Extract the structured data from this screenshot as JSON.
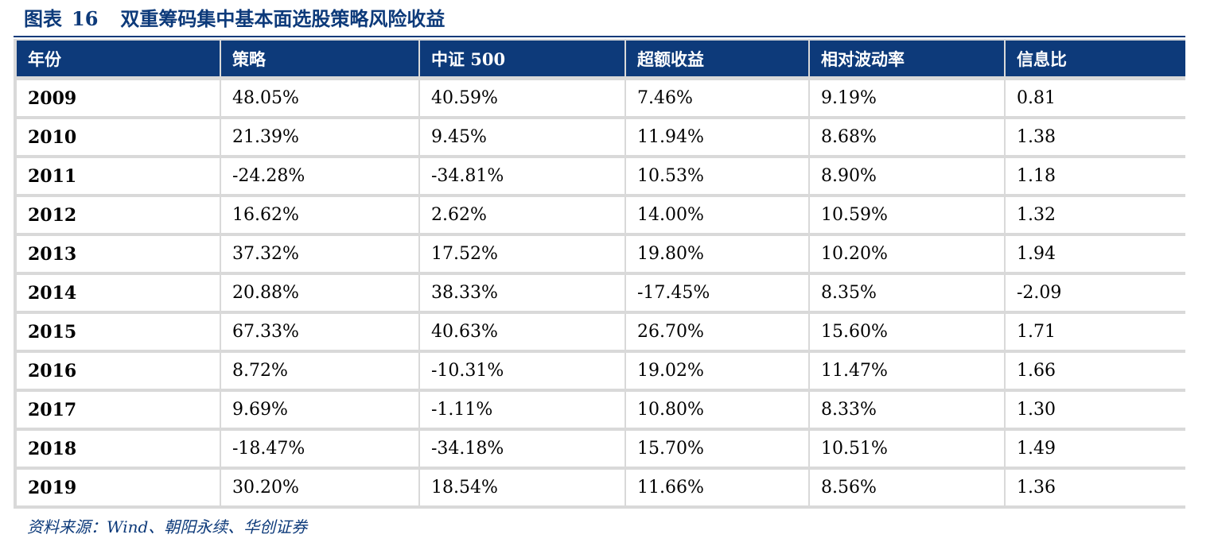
{
  "figure": {
    "label": "图表",
    "number": "16",
    "title": "双重筹码集中基本面选股策略风险收益"
  },
  "table": {
    "headers": [
      "年份",
      "策略",
      "中证 500",
      "超额收益",
      "相对波动率",
      "信息比"
    ],
    "rows": [
      [
        "2009",
        "48.05%",
        "40.59%",
        "7.46%",
        "9.19%",
        "0.81"
      ],
      [
        "2010",
        "21.39%",
        "9.45%",
        "11.94%",
        "8.68%",
        "1.38"
      ],
      [
        "2011",
        "-24.28%",
        "-34.81%",
        "10.53%",
        "8.90%",
        "1.18"
      ],
      [
        "2012",
        "16.62%",
        "2.62%",
        "14.00%",
        "10.59%",
        "1.32"
      ],
      [
        "2013",
        "37.32%",
        "17.52%",
        "19.80%",
        "10.20%",
        "1.94"
      ],
      [
        "2014",
        "20.88%",
        "38.33%",
        "-17.45%",
        "8.35%",
        "-2.09"
      ],
      [
        "2015",
        "67.33%",
        "40.63%",
        "26.70%",
        "15.60%",
        "1.71"
      ],
      [
        "2016",
        "8.72%",
        "-10.31%",
        "19.02%",
        "11.47%",
        "1.66"
      ],
      [
        "2017",
        "9.69%",
        "-1.11%",
        "10.80%",
        "8.33%",
        "1.30"
      ],
      [
        "2018",
        "-18.47%",
        "-34.18%",
        "15.70%",
        "10.51%",
        "1.49"
      ],
      [
        "2019",
        "30.20%",
        "18.54%",
        "11.66%",
        "8.56%",
        "1.36"
      ]
    ]
  },
  "source": "资料来源：Wind、朝阳永续、华创证券",
  "colors": {
    "header_bg": "#0d3a7a",
    "header_text": "#ffffff",
    "grid": "#d9d9d9",
    "title": "#0d3a7a"
  }
}
